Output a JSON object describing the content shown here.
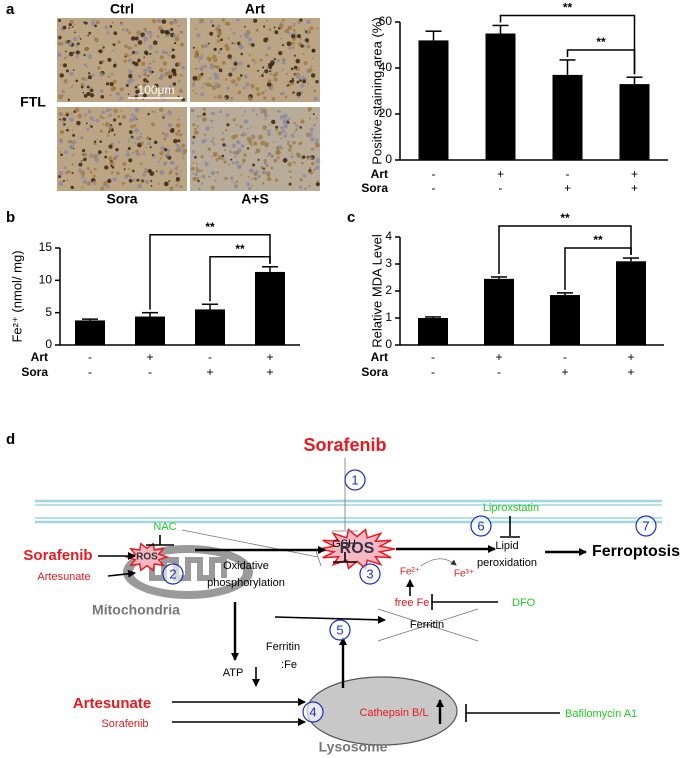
{
  "chart_data": [
    {
      "type": "bar",
      "panel_label": "a",
      "y_label": "Positive staining area (%)",
      "values": [
        52,
        55,
        37,
        33
      ],
      "errors": [
        4,
        3.5,
        6.5,
        3
      ],
      "color": "#000000",
      "ylim": [
        0,
        60
      ],
      "yticks": [
        0,
        20,
        40,
        60
      ],
      "condition_rows": [
        {
          "name": "Art",
          "signs": [
            "-",
            "+",
            "-",
            "+"
          ]
        },
        {
          "name": "Sora",
          "signs": [
            "-",
            "-",
            "+",
            "+"
          ]
        }
      ],
      "significance": [
        {
          "between": [
            2,
            3
          ],
          "label": "**"
        },
        {
          "between": [
            1,
            3
          ],
          "label": "**"
        }
      ]
    },
    {
      "type": "bar",
      "panel_label": "b",
      "y_label": "Fe²⁺ (nmol/ mg)",
      "values": [
        3.8,
        4.4,
        5.5,
        11.3
      ],
      "errors": [
        0.2,
        0.6,
        0.8,
        0.8
      ],
      "color": "#000000",
      "ylim": [
        0,
        15
      ],
      "yticks": [
        0,
        5,
        10,
        15
      ],
      "condition_rows": [
        {
          "name": "Art",
          "signs": [
            "-",
            "+",
            "-",
            "+"
          ]
        },
        {
          "name": "Sora",
          "signs": [
            "-",
            "-",
            "+",
            "+"
          ]
        }
      ],
      "significance": [
        {
          "between": [
            2,
            3
          ],
          "label": "**"
        },
        {
          "between": [
            1,
            3
          ],
          "label": "**"
        }
      ]
    },
    {
      "type": "bar",
      "panel_label": "c",
      "y_label": "Relative MDA Level",
      "values": [
        1.0,
        2.45,
        1.85,
        3.1
      ],
      "errors": [
        0.04,
        0.07,
        0.08,
        0.12
      ],
      "color": "#000000",
      "ylim": [
        0,
        4
      ],
      "yticks": [
        0,
        1,
        2,
        3,
        4
      ],
      "condition_rows": [
        {
          "name": "Art",
          "signs": [
            "-",
            "+",
            "-",
            "+"
          ]
        },
        {
          "name": "Sora",
          "signs": [
            "-",
            "-",
            "+",
            "+"
          ]
        }
      ],
      "significance": [
        {
          "between": [
            2,
            3
          ],
          "label": "**"
        },
        {
          "between": [
            1,
            3
          ],
          "label": "**"
        }
      ]
    }
  ],
  "micrographs": {
    "row_label": "FTL",
    "tiles": [
      "Ctrl",
      "Art",
      "Sora",
      "A+S"
    ],
    "scale_bar": "100μm"
  },
  "diagram": {
    "panel_label": "d",
    "sorafenib_top": "Sorafenib",
    "steps": [
      "1",
      "2",
      "3",
      "4",
      "5",
      "6",
      "7"
    ],
    "nac": "NAC",
    "gsh": "GSH",
    "ros": [
      "ROS",
      "ROS"
    ],
    "sorafenib_mito": "Sorafenib",
    "artesunate_mito": "Artesunate",
    "oxphos": [
      "Oxidative",
      "phosphorylation"
    ],
    "mitochondria": "Mitochondria",
    "atp": "ATP",
    "ferritin_fe": [
      "Ferritin",
      ":Fe"
    ],
    "lipid_peroxidation": [
      "Lipid",
      "peroxidation"
    ],
    "ferroptosis": "Ferroptosis",
    "liproxstatin": "Liproxstatin",
    "fe2": "Fe²⁺",
    "fe3": "Fe³⁺",
    "free_fe": "free Fe",
    "dfo": "DFO",
    "ferritin": "Ferritin",
    "artesunate_lyso": "Artesunate",
    "sorafenib_lyso": "Sorafenib",
    "cathepsin": "Cathepsin B/L",
    "bafilomycin": "Bafilomycin A1",
    "lysosome": "Lysosome"
  }
}
